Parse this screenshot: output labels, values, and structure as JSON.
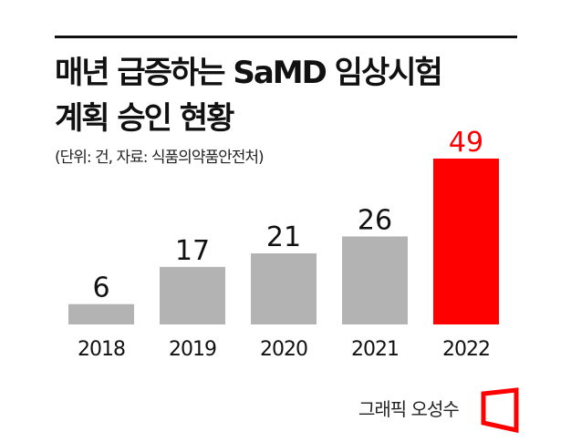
{
  "chart_data": {
    "type": "bar",
    "title": [
      "매년 급증하는 SaMD 임상시험",
      "계획 승인 현황"
    ],
    "subtitle": "(단위: 건, 자료: 식품의약품안전처)",
    "categories": [
      "2018",
      "2019",
      "2020",
      "2021",
      "2022"
    ],
    "values": [
      6,
      17,
      21,
      26,
      49
    ],
    "xlabel": "",
    "ylabel": "",
    "ylim": [
      0,
      49
    ],
    "grid": false,
    "colors": {
      "default": "#b3b3b3",
      "highlight": "#ff0000",
      "highlight_index": 4,
      "label_default": "#111111"
    }
  },
  "credit": "그래픽 오성수",
  "logo_color": "#ff0000"
}
